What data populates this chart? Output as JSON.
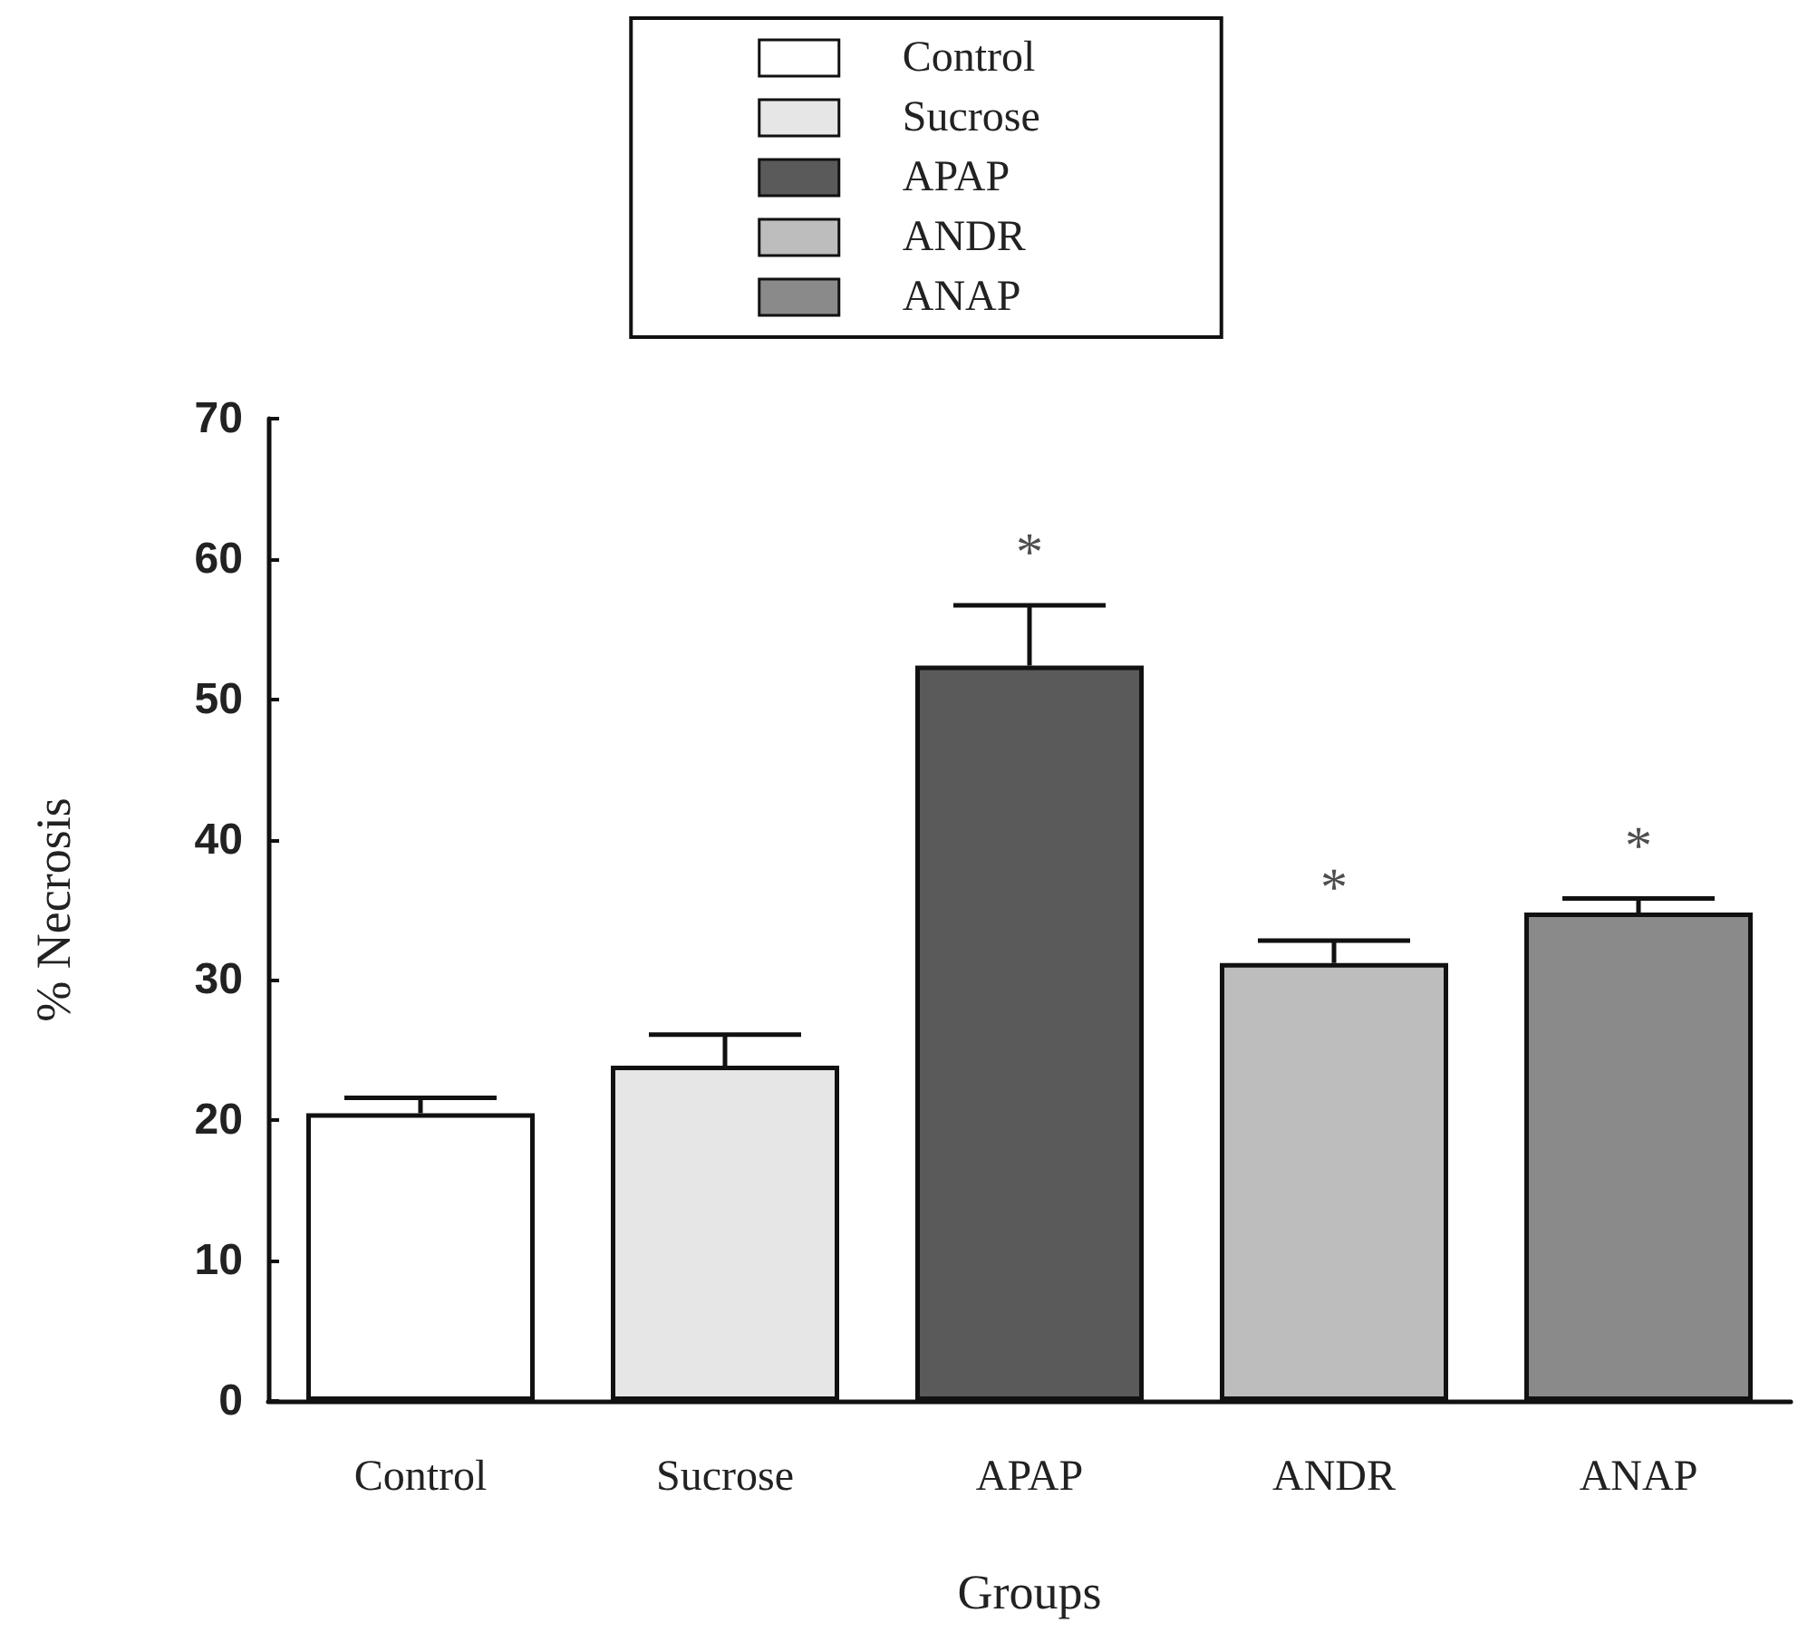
{
  "chart_data": {
    "type": "bar",
    "stacked": true,
    "categories": [
      "Control",
      "Sucrose",
      "APAP",
      "ANDR",
      "ANAP"
    ],
    "series": [
      {
        "name": "Control",
        "color": "#ffffff",
        "values": [
          20.5,
          null,
          null,
          null,
          null
        ],
        "errors": [
          [
            20.5,
            21.6
          ],
          null,
          null,
          null,
          null
        ]
      },
      {
        "name": "Sucrose",
        "color": "#e6e6e6",
        "values": [
          null,
          23.9,
          null,
          null,
          null
        ],
        "errors": [
          null,
          [
            23.9,
            26.1
          ],
          null,
          null,
          null
        ]
      },
      {
        "name": "APAP",
        "color": "#5a5a5a",
        "values": [
          null,
          null,
          52.4,
          null,
          null
        ],
        "errors": [
          null,
          null,
          [
            52.4,
            56.7
          ],
          null,
          null
        ],
        "value_labels": [
          null,
          null,
          "*",
          null,
          null
        ]
      },
      {
        "name": "ANDR",
        "color": "#bdbdbd",
        "values": [
          null,
          null,
          null,
          31.2,
          null
        ],
        "errors": [
          null,
          null,
          null,
          [
            31.2,
            32.8
          ],
          null
        ],
        "value_labels": [
          null,
          null,
          null,
          "*",
          null
        ]
      },
      {
        "name": "ANAP",
        "color": "#8a8a8a",
        "values": [
          null,
          null,
          null,
          null,
          34.8
        ],
        "errors": [
          null,
          null,
          null,
          null,
          [
            34.8,
            35.8
          ]
        ],
        "value_labels": [
          null,
          null,
          null,
          null,
          "*"
        ]
      }
    ],
    "xlabel": "Groups",
    "ylabel": "% Necrosis",
    "ylim": [
      0,
      70
    ],
    "yticks": [
      0,
      10,
      20,
      30,
      40,
      50,
      60,
      70
    ],
    "legend": "top",
    "grid": false
  }
}
